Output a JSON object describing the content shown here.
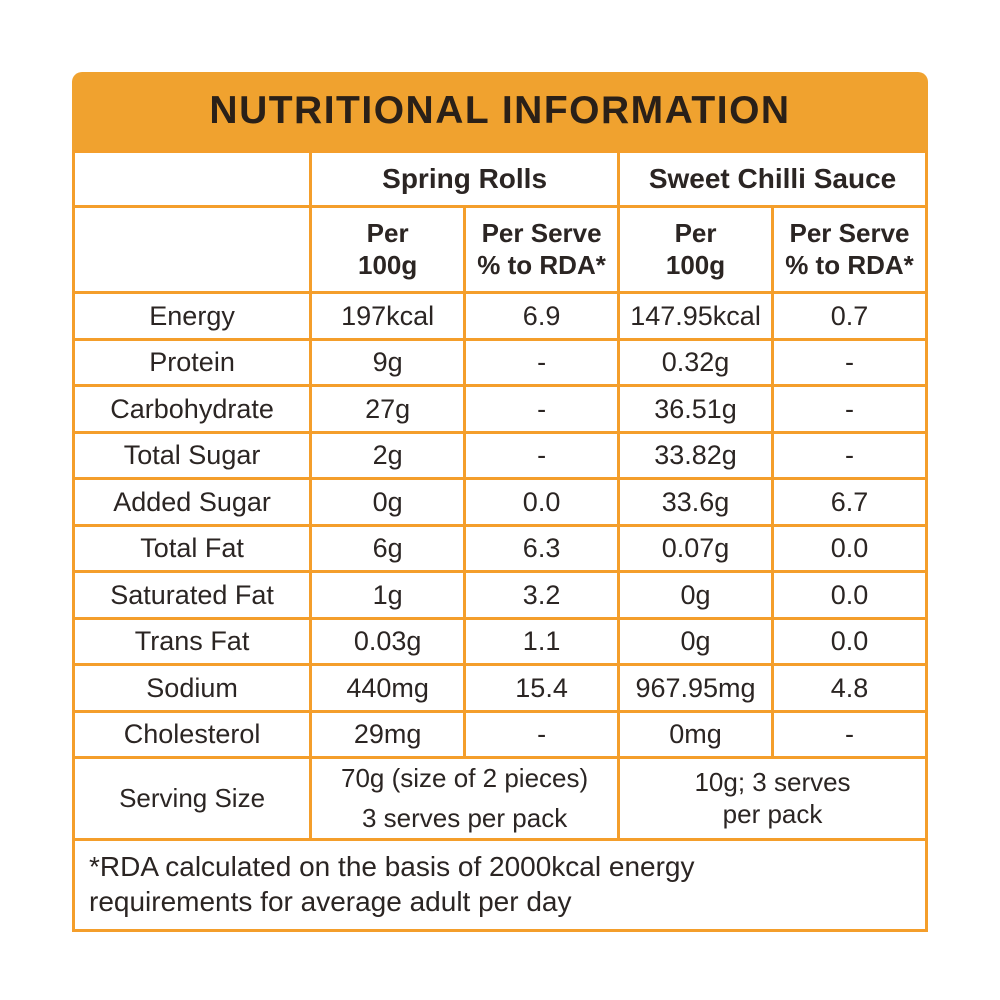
{
  "title": "NUTRITIONAL INFORMATION",
  "colors": {
    "banner_orange": "#F0A22F",
    "border_orange": "#F49E2B",
    "text_dark": "#2B2523"
  },
  "products": [
    {
      "name": "Spring Rolls"
    },
    {
      "name": "Sweet Chilli Sauce"
    }
  ],
  "column_headers": {
    "per_100g": "Per\n100g",
    "per_serve_rda": "Per Serve\n% to RDA*"
  },
  "table": {
    "rows": [
      {
        "label": "Energy",
        "values": [
          "197kcal",
          "6.9",
          "147.95kcal",
          "0.7"
        ]
      },
      {
        "label": "Protein",
        "values": [
          "9g",
          "-",
          "0.32g",
          "-"
        ]
      },
      {
        "label": "Carbohydrate",
        "values": [
          "27g",
          "-",
          "36.51g",
          "-"
        ]
      },
      {
        "label": "Total Sugar",
        "values": [
          "2g",
          "-",
          "33.82g",
          "-"
        ]
      },
      {
        "label": "Added Sugar",
        "values": [
          "0g",
          "0.0",
          "33.6g",
          "6.7"
        ]
      },
      {
        "label": "Total Fat",
        "values": [
          "6g",
          "6.3",
          "0.07g",
          "0.0"
        ]
      },
      {
        "label": "Saturated Fat",
        "values": [
          "1g",
          "3.2",
          "0g",
          "0.0"
        ]
      },
      {
        "label": "Trans Fat",
        "values": [
          "0.03g",
          "1.1",
          "0g",
          "0.0"
        ]
      },
      {
        "label": "Sodium",
        "values": [
          "440mg",
          "15.4",
          "967.95mg",
          "4.8"
        ]
      },
      {
        "label": "Cholesterol",
        "values": [
          "29mg",
          "-",
          "0mg",
          "-"
        ]
      }
    ]
  },
  "serving": {
    "label": "Serving Size",
    "spring_rolls_line_1": "70g (size of 2 pieces)",
    "spring_rolls_line_2": "3 serves per pack",
    "sweet_chilli_sauce": "10g; 3 serves\nper pack"
  },
  "footnote": "*RDA calculated on the basis of 2000kcal energy\nrequirements for average adult per day"
}
